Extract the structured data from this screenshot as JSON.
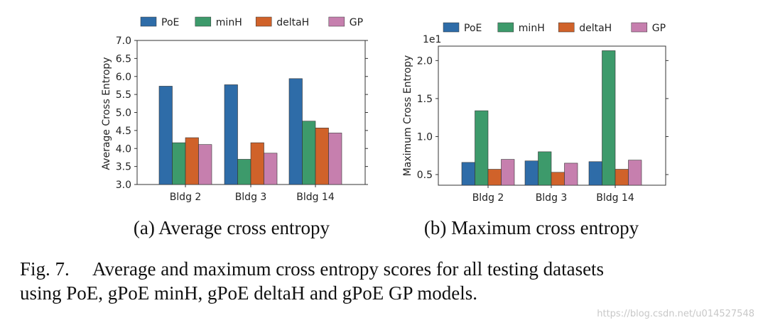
{
  "colors": {
    "PoE": "#2e6ca8",
    "minH": "#3d9a6b",
    "deltaH": "#d0622a",
    "GP": "#c67fae"
  },
  "chart_data": [
    {
      "type": "bar",
      "id": "avg",
      "categories": [
        "Bldg 2",
        "Bldg 3",
        "Bldg 14"
      ],
      "series": [
        {
          "name": "PoE",
          "values": [
            5.73,
            5.77,
            5.94
          ]
        },
        {
          "name": "minH",
          "values": [
            4.16,
            3.7,
            4.76
          ]
        },
        {
          "name": "deltaH",
          "values": [
            4.3,
            4.16,
            4.57
          ]
        },
        {
          "name": "GP",
          "values": [
            4.11,
            3.87,
            4.43
          ]
        }
      ],
      "ylabel": "Average Cross Entropy",
      "ylim": [
        3.0,
        7.0
      ],
      "yticks": [
        "3.0",
        "3.5",
        "4.0",
        "4.5",
        "5.0",
        "5.5",
        "6.0",
        "6.5",
        "7.0"
      ],
      "legend": "top",
      "subcaption": "(a) Average cross entropy"
    },
    {
      "type": "bar",
      "id": "max",
      "categories": [
        "Bldg 2",
        "Bldg 3",
        "Bldg 14"
      ],
      "series": [
        {
          "name": "PoE",
          "values": [
            0.66,
            0.68,
            0.67
          ]
        },
        {
          "name": "minH",
          "values": [
            1.34,
            0.8,
            2.13
          ]
        },
        {
          "name": "deltaH",
          "values": [
            0.57,
            0.53,
            0.57
          ]
        },
        {
          "name": "GP",
          "values": [
            0.7,
            0.65,
            0.69
          ]
        }
      ],
      "ylabel": "Maximum Cross Entropy",
      "ylim": [
        0.36,
        2.19
      ],
      "yticks": [
        "0.5",
        "1.0",
        "1.5",
        "2.0"
      ],
      "scale_label": "1e1",
      "legend": "top",
      "subcaption": "(b) Maximum cross entropy"
    }
  ],
  "caption": {
    "line1": "Fig. 7.  Average and maximum cross entropy scores for all testing datasets",
    "line2": "using PoE, gPoE minH, gPoE deltaH and gPoE GP models."
  },
  "watermark": "https://blog.csdn.net/u014527548"
}
